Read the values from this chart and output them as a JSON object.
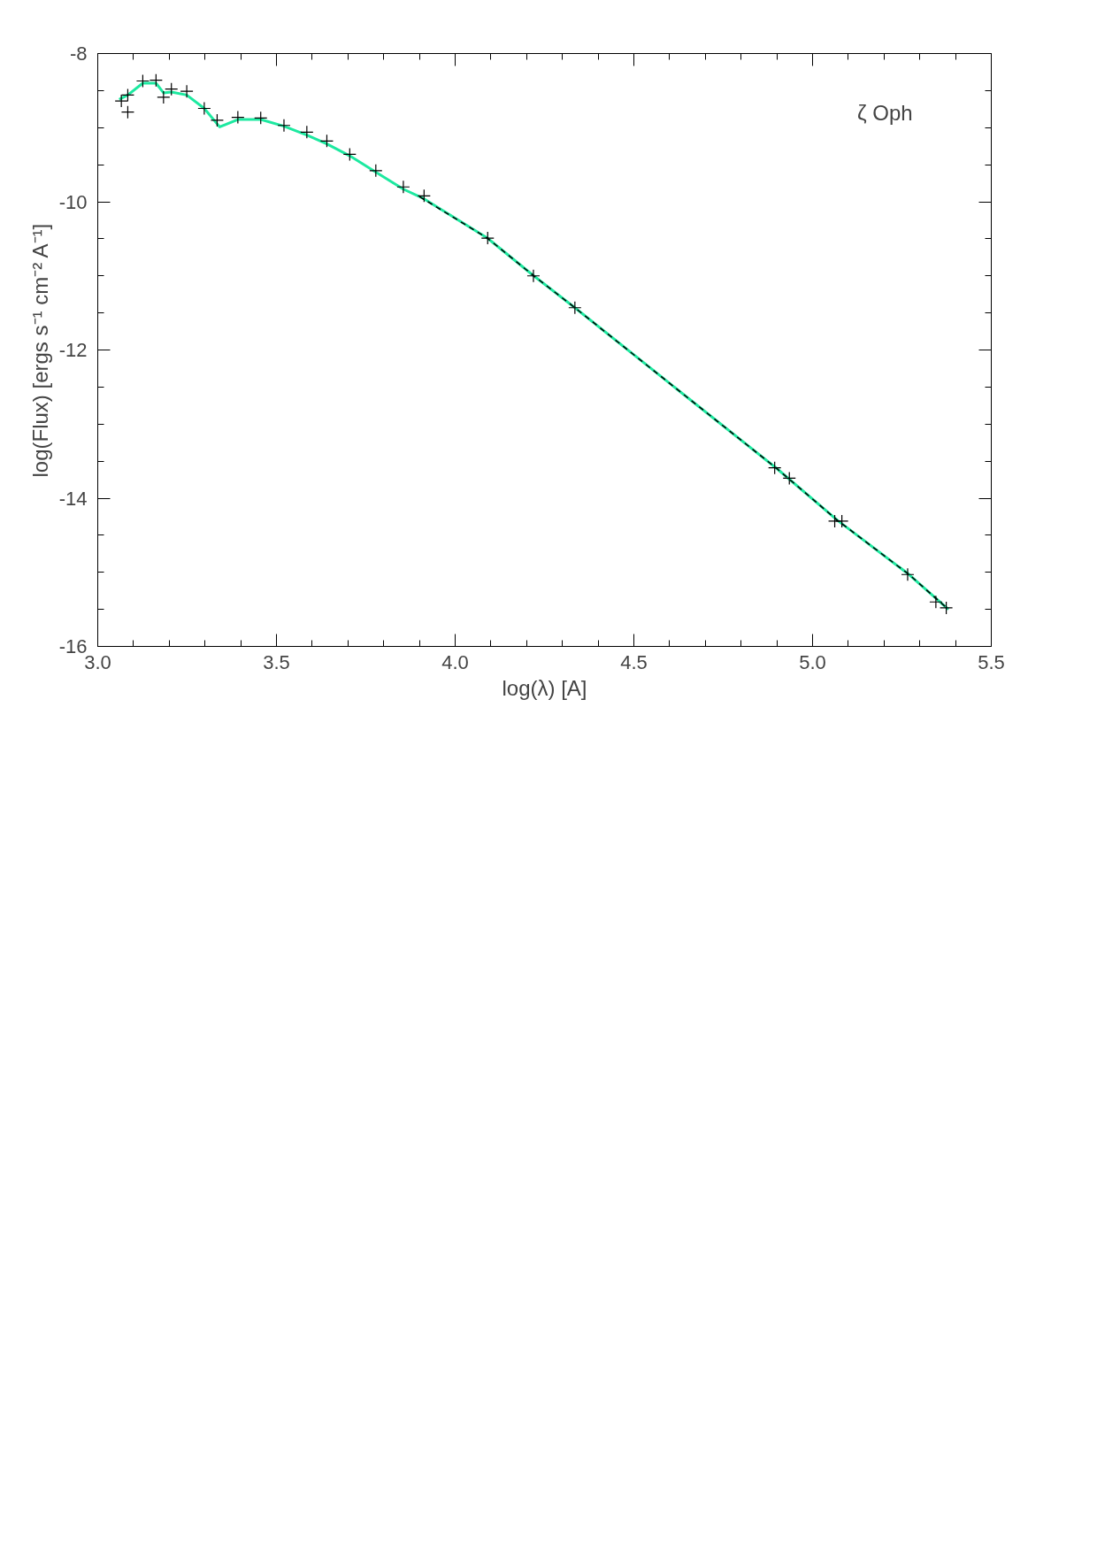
{
  "chart_data": {
    "type": "line",
    "xlabel": "log(λ) [A]",
    "ylabel": "log(Flux) [ergs s⁻¹ cm⁻² A⁻¹]",
    "annotations": [
      "ζ Oph"
    ],
    "xlim": [
      3.0,
      5.5
    ],
    "xticks": [
      {
        "value": 3,
        "label": "3.0"
      },
      3.5,
      {
        "value": 4,
        "label": "4.0"
      },
      4.5,
      {
        "value": 5,
        "label": "5.0"
      },
      5.5
    ],
    "ylim": [
      -16,
      -8
    ],
    "yticks": [
      -16,
      -14,
      -12,
      -10,
      -8
    ],
    "grid": false,
    "series": [
      {
        "type": "scatter",
        "marker": "cross",
        "color": "#000000",
        "x": [
          3.066,
          3.084,
          3.084,
          3.126,
          3.163,
          3.184,
          3.206,
          3.249,
          3.298,
          3.334,
          3.392,
          3.456,
          3.521,
          3.585,
          3.641,
          3.705,
          3.778,
          3.855,
          3.913,
          4.091,
          4.219,
          4.335,
          4.894,
          4.935,
          5.062,
          5.082,
          5.266,
          5.345,
          5.374
        ],
        "values": [
          -8.64,
          -8.79,
          -8.56,
          -8.37,
          -8.36,
          -8.59,
          -8.48,
          -8.51,
          -8.74,
          -8.9,
          -8.86,
          -8.87,
          -8.97,
          -9.06,
          -9.18,
          -9.36,
          -9.58,
          -9.8,
          -9.92,
          -10.49,
          -11.0,
          -11.43,
          -13.59,
          -13.73,
          -14.31,
          -14.31,
          -15.03,
          -15.4,
          -15.48
        ]
      },
      {
        "line_style": "solid",
        "color": "#1de9a0",
        "x": [
          3.06,
          3.084,
          3.126,
          3.163,
          3.184,
          3.206,
          3.249,
          3.298,
          3.341,
          3.392,
          3.456,
          3.521,
          3.585,
          3.641,
          3.705,
          3.778,
          3.855,
          3.913,
          4.09,
          4.22,
          4.335,
          4.6,
          4.9,
          5.07,
          5.27,
          5.38
        ],
        "values": [
          -8.62,
          -8.56,
          -8.4,
          -8.4,
          -8.53,
          -8.52,
          -8.56,
          -8.74,
          -8.99,
          -8.89,
          -8.89,
          -8.98,
          -9.1,
          -9.22,
          -9.38,
          -9.6,
          -9.83,
          -9.96,
          -10.49,
          -11.0,
          -11.43,
          -12.45,
          -13.6,
          -14.3,
          -15.03,
          -15.5
        ]
      },
      {
        "type": "line",
        "line_style": "dashed",
        "color": "#000000",
        "x": [
          3.9,
          4.09,
          4.22,
          4.335,
          4.6,
          4.9,
          5.07,
          5.27,
          5.38
        ],
        "values": [
          -9.93,
          -10.49,
          -11.0,
          -11.43,
          -12.45,
          -13.6,
          -14.3,
          -15.03,
          -15.5
        ]
      }
    ]
  }
}
